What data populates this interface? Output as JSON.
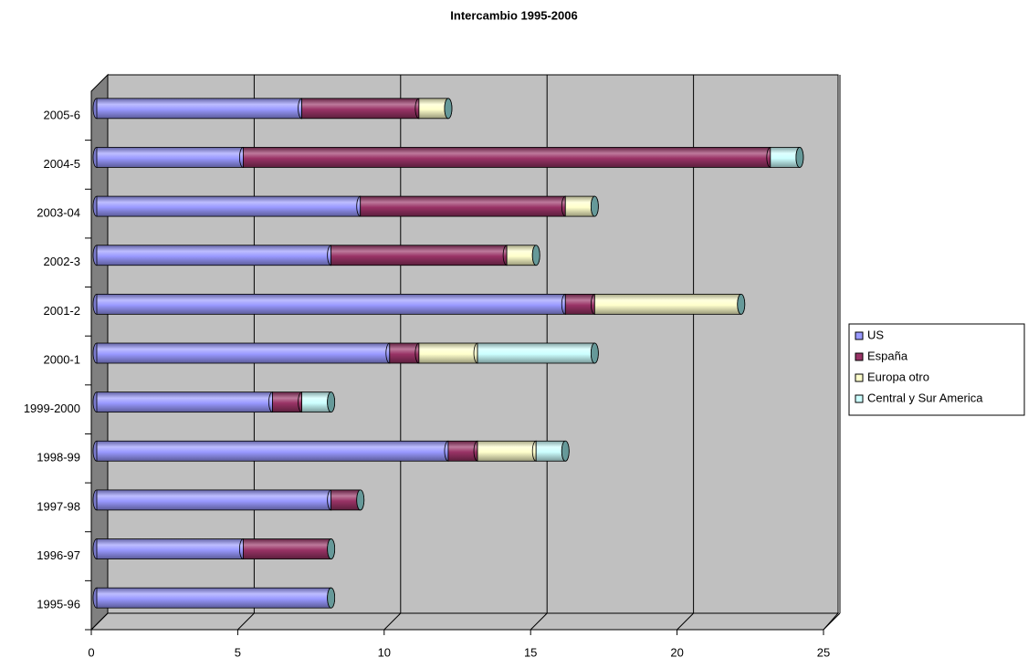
{
  "chart_data": {
    "type": "bar",
    "orientation": "horizontal",
    "stacked": true,
    "title": "Intercambio 1995-2006",
    "categories": [
      "1995-96",
      "1996-97",
      "1997-98",
      "1998-99",
      "1999-2000",
      "2000-1",
      "2001-2",
      "2002-3",
      "2003-04",
      "2004-5",
      "2005-6"
    ],
    "series": [
      {
        "name": "US",
        "color": "#9999ff",
        "values": [
          8,
          5,
          8,
          12,
          6,
          10,
          16,
          8,
          9,
          5,
          7
        ]
      },
      {
        "name": "España",
        "color": "#993366",
        "values": [
          0,
          3,
          1,
          1,
          1,
          1,
          1,
          6,
          7,
          18,
          4
        ]
      },
      {
        "name": "Europa otro",
        "color": "#ffffcc",
        "values": [
          0,
          0,
          0,
          2,
          0,
          2,
          5,
          1,
          1,
          0,
          1
        ]
      },
      {
        "name": "Central y Sur America",
        "color": "#ccffff",
        "values": [
          0,
          0,
          0,
          1,
          1,
          4,
          0,
          0,
          0,
          1,
          0
        ]
      }
    ],
    "xlim": [
      0,
      25
    ],
    "xticks": [
      0,
      5,
      10,
      15,
      20,
      25
    ],
    "grid": true,
    "legend": "right"
  }
}
